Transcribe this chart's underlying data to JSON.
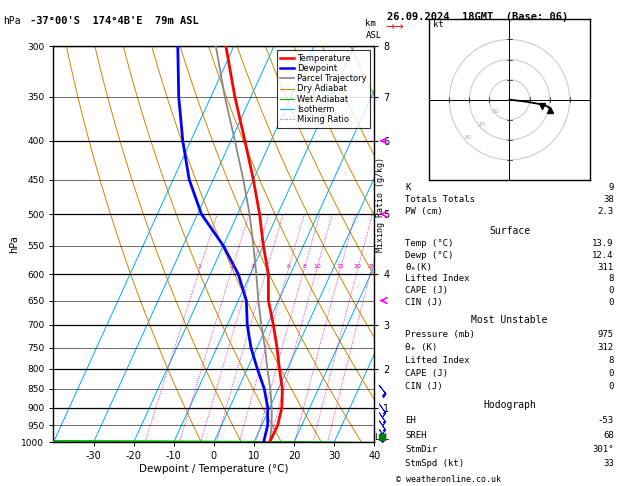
{
  "title_left": "-37°00'S  174°4B'E  79m ASL",
  "title_right": "26.09.2024  18GMT  (Base: 06)",
  "xlabel": "Dewpoint / Temperature (°C)",
  "isotherm_color": "#00aaff",
  "dry_adiabat_color": "#cc8800",
  "wet_adiabat_color": "#00aa00",
  "mixing_ratio_color": "#dd00aa",
  "temp_color": "#ff0000",
  "dewp_color": "#0000ff",
  "parcel_color": "#888888",
  "temp_profile_T": [
    13.9,
    14.0,
    13.0,
    11.0,
    8.0,
    5.0,
    1.5,
    -2.5,
    -5.5,
    -10.0,
    -14.5,
    -20.0,
    -26.5,
    -34.0,
    -42.0
  ],
  "temp_profile_P": [
    1000,
    950,
    900,
    850,
    800,
    750,
    700,
    650,
    600,
    550,
    500,
    450,
    400,
    350,
    300
  ],
  "dewp_profile_T": [
    12.4,
    11.5,
    9.5,
    6.5,
    2.5,
    -1.5,
    -5.0,
    -8.0,
    -13.0,
    -20.0,
    -29.0,
    -36.0,
    -42.0,
    -48.0,
    -54.0
  ],
  "dewp_profile_P": [
    1000,
    950,
    900,
    850,
    800,
    750,
    700,
    650,
    600,
    550,
    500,
    450,
    400,
    350,
    300
  ],
  "parcel_T": [
    13.9,
    12.5,
    10.5,
    8.0,
    5.0,
    2.0,
    -1.5,
    -5.0,
    -8.5,
    -12.5,
    -17.0,
    -22.5,
    -29.0,
    -36.5,
    -44.5
  ],
  "parcel_P": [
    1000,
    950,
    900,
    850,
    800,
    750,
    700,
    650,
    600,
    550,
    500,
    450,
    400,
    350,
    300
  ],
  "stats_K": "9",
  "stats_TT": "38",
  "stats_PW": "2.3",
  "surf_temp": "13.9",
  "surf_dewp": "12.4",
  "surf_theta": "311",
  "surf_li": "8",
  "surf_cape": "0",
  "surf_cin": "0",
  "mu_pres": "975",
  "mu_theta": "312",
  "mu_li": "8",
  "mu_cape": "0",
  "mu_cin": "0",
  "hodo_eh": "-53",
  "hodo_sreh": "68",
  "hodo_stmdir": "301°",
  "hodo_stmspd": "33",
  "footer": "© weatheronline.co.uk"
}
